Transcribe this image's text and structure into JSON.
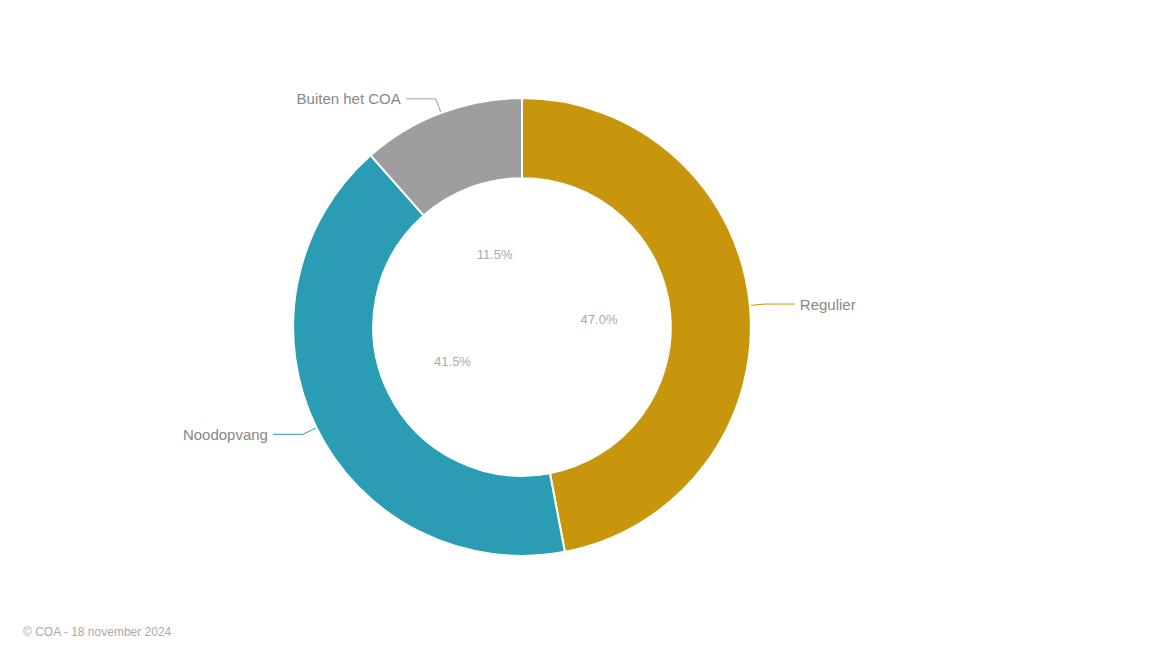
{
  "chart_data": {
    "type": "pie",
    "categories": [
      "Regulier",
      "Noodopvang",
      "Buiten het COA"
    ],
    "values": [
      47.0,
      41.5,
      11.5
    ],
    "value_labels": [
      "47.0%",
      "41.5%",
      "11.5%"
    ],
    "colors": [
      "#C8960C",
      "#2A9DB5",
      "#9E9E9E"
    ],
    "data_labels": true,
    "annotations": [
      "© COA - 18 november 2024"
    ]
  }
}
